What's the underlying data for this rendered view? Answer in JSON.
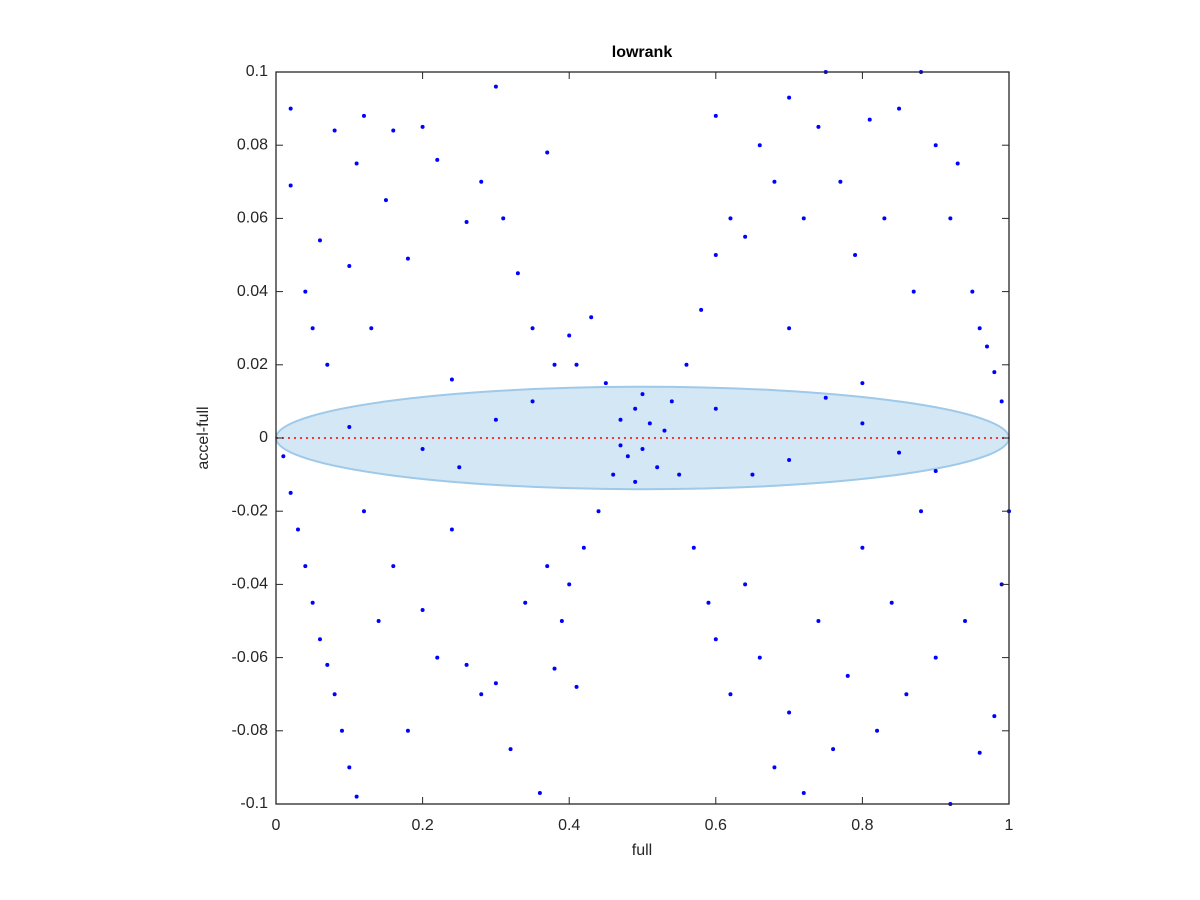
{
  "chart_data": {
    "type": "scatter",
    "title": "lowrank",
    "x_label": "full",
    "y_label": "accel-full",
    "color": "#0000ff",
    "xlim": [
      0,
      1
    ],
    "xticks": [
      0,
      0.2,
      0.4,
      0.6,
      0.8,
      1
    ],
    "ylim": [
      -0.1,
      0.1
    ],
    "yticks": [
      -0.1,
      -0.08,
      -0.06,
      -0.04,
      -0.02,
      0,
      0.02,
      0.04,
      0.06,
      0.08,
      0.1
    ],
    "ellipse": {
      "center": [
        0.5,
        0
      ],
      "radii": [
        0.5,
        0.014
      ],
      "color": "#9fc9e8"
    },
    "reference_line": {
      "y": 0,
      "color": "#ff3333"
    },
    "x": [
      0.01,
      0.02,
      0.03,
      0.04,
      0.05,
      0.06,
      0.07,
      0.08,
      0.09,
      0.1,
      0.11,
      0.02,
      0.02,
      0.04,
      0.05,
      0.06,
      0.07,
      0.08,
      0.1,
      0.11,
      0.12,
      0.13,
      0.15,
      0.16,
      0.18,
      0.2,
      0.22,
      0.24,
      0.26,
      0.28,
      0.3,
      0.31,
      0.33,
      0.35,
      0.37,
      0.38,
      0.4,
      0.41,
      0.43,
      0.45,
      0.12,
      0.14,
      0.16,
      0.18,
      0.2,
      0.22,
      0.24,
      0.26,
      0.28,
      0.3,
      0.32,
      0.34,
      0.36,
      0.37,
      0.39,
      0.4,
      0.42,
      0.44,
      0.46,
      0.38,
      0.41,
      0.47,
      0.48,
      0.49,
      0.5,
      0.51,
      0.52,
      0.5,
      0.49,
      0.53,
      0.47,
      0.3,
      0.2,
      0.1,
      0.6,
      0.7,
      0.8,
      0.9,
      0.65,
      0.35,
      0.25,
      0.75,
      0.85,
      0.54,
      0.56,
      0.58,
      0.6,
      0.62,
      0.64,
      0.66,
      0.68,
      0.7,
      0.72,
      0.74,
      0.75,
      0.77,
      0.79,
      0.81,
      0.83,
      0.85,
      0.87,
      0.88,
      0.9,
      0.92,
      0.93,
      0.95,
      0.96,
      0.97,
      0.98,
      0.99,
      0.6,
      0.7,
      0.8,
      0.55,
      0.57,
      0.59,
      0.6,
      0.62,
      0.64,
      0.66,
      0.68,
      0.7,
      0.72,
      0.74,
      0.76,
      0.78,
      0.8,
      0.82,
      0.84,
      0.86,
      0.88,
      0.9,
      0.92,
      0.94,
      0.96,
      0.98,
      0.99,
      1.0
    ],
    "values": [
      -0.005,
      -0.015,
      -0.025,
      -0.035,
      -0.045,
      -0.055,
      -0.062,
      -0.07,
      -0.08,
      -0.09,
      -0.098,
      0.09,
      0.069,
      0.04,
      0.03,
      0.054,
      0.02,
      0.084,
      0.047,
      0.075,
      0.088,
      0.03,
      0.065,
      0.084,
      0.049,
      0.085,
      0.076,
      0.016,
      0.059,
      0.07,
      0.096,
      0.06,
      0.045,
      0.03,
      0.078,
      0.02,
      0.028,
      0.02,
      0.033,
      0.015,
      -0.02,
      -0.05,
      -0.035,
      -0.08,
      -0.047,
      -0.06,
      -0.025,
      -0.062,
      -0.07,
      -0.067,
      -0.085,
      -0.045,
      -0.097,
      -0.035,
      -0.05,
      -0.04,
      -0.03,
      -0.02,
      -0.01,
      -0.063,
      -0.068,
      0.005,
      -0.005,
      0.008,
      -0.003,
      0.004,
      -0.008,
      0.012,
      -0.012,
      0.002,
      -0.002,
      0.005,
      -0.003,
      0.003,
      0.008,
      -0.006,
      0.004,
      -0.009,
      -0.01,
      0.01,
      -0.008,
      0.011,
      -0.004,
      0.01,
      0.02,
      0.035,
      0.05,
      0.06,
      0.055,
      0.08,
      0.07,
      0.093,
      0.06,
      0.085,
      0.1,
      0.07,
      0.05,
      0.087,
      0.06,
      0.09,
      0.04,
      0.1,
      0.08,
      0.06,
      0.075,
      0.04,
      0.03,
      0.025,
      0.018,
      0.01,
      0.088,
      0.03,
      0.015,
      -0.01,
      -0.03,
      -0.045,
      -0.055,
      -0.07,
      -0.04,
      -0.06,
      -0.09,
      -0.075,
      -0.097,
      -0.05,
      -0.085,
      -0.065,
      -0.03,
      -0.08,
      -0.045,
      -0.07,
      -0.02,
      -0.06,
      -0.1,
      -0.05,
      -0.086,
      -0.076,
      -0.04,
      -0.02
    ]
  }
}
